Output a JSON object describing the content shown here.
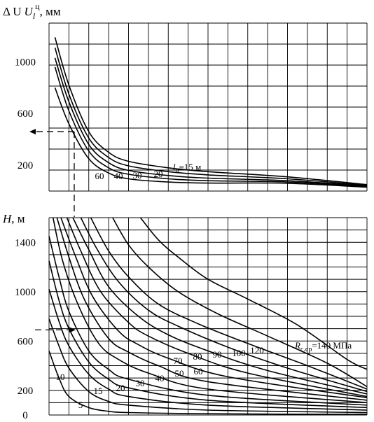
{
  "chart_data": [
    {
      "type": "line",
      "ylabel": "Δ U",
      "ylabel_sup": "ц",
      "ylabel_sub": "l",
      "ylabel_unit": ", мм",
      "yticks": [
        "1000",
        "600",
        "200"
      ],
      "ytick_values": [
        1000,
        600,
        200
      ],
      "ylim": [
        0,
        1300
      ],
      "xlim": [
        0,
        16
      ],
      "grid": true,
      "series_label_prefix": "l",
      "series_label_prefix_sub": "ц",
      "series_label_suffix": "=15 м",
      "series": [
        {
          "label": "15",
          "points": [
            [
              0.3,
              1190
            ],
            [
              1,
              820
            ],
            [
              2,
              460
            ],
            [
              3,
              300
            ],
            [
              4,
              230
            ],
            [
              6,
              180
            ],
            [
              8,
              150
            ],
            [
              12,
              110
            ],
            [
              16,
              50
            ]
          ]
        },
        {
          "label": "20",
          "points": [
            [
              0.3,
              1110
            ],
            [
              1,
              750
            ],
            [
              2,
              410
            ],
            [
              3,
              260
            ],
            [
              4,
              195
            ],
            [
              6,
              150
            ],
            [
              8,
              125
            ],
            [
              12,
              95
            ],
            [
              16,
              45
            ]
          ]
        },
        {
          "label": "30",
          "points": [
            [
              0.3,
              1030
            ],
            [
              1,
              690
            ],
            [
              2,
              360
            ],
            [
              3,
              220
            ],
            [
              4,
              160
            ],
            [
              6,
              120
            ],
            [
              8,
              100
            ],
            [
              12,
              80
            ],
            [
              16,
              40
            ]
          ]
        },
        {
          "label": "40",
          "points": [
            [
              0.3,
              960
            ],
            [
              1,
              620
            ],
            [
              2,
              310
            ],
            [
              3,
              180
            ],
            [
              4,
              130
            ],
            [
              6,
              95
            ],
            [
              8,
              80
            ],
            [
              12,
              70
            ],
            [
              16,
              35
            ]
          ]
        },
        {
          "label": "60",
          "points": [
            [
              0.3,
              800
            ],
            [
              1,
              520
            ],
            [
              2,
              250
            ],
            [
              3,
              140
            ],
            [
              4,
              95
            ],
            [
              6,
              70
            ],
            [
              8,
              62
            ],
            [
              12,
              60
            ],
            [
              16,
              30
            ]
          ]
        }
      ],
      "reading_line": {
        "y": 460
      }
    },
    {
      "type": "line",
      "ylabel": "H",
      "ylabel_unit": ", м",
      "yticks": [
        "1400",
        "1000",
        "600",
        "200",
        "0"
      ],
      "ytick_values": [
        1400,
        1000,
        600,
        200,
        0
      ],
      "ylim": [
        0,
        1600
      ],
      "xlim": [
        0,
        16
      ],
      "grid": true,
      "series_label_prefix": "R",
      "series_label_prefix_sub": "с.ср",
      "series_label_suffix": "=140 МПа",
      "series": [
        {
          "label": "5",
          "points": [
            [
              0,
              520
            ],
            [
              0.5,
              300
            ],
            [
              1,
              150
            ],
            [
              2,
              60
            ],
            [
              3,
              30
            ],
            [
              4,
              20
            ],
            [
              8,
              10
            ],
            [
              16,
              5
            ]
          ]
        },
        {
          "label": "10",
          "points": [
            [
              0,
              780
            ],
            [
              0.5,
              560
            ],
            [
              1,
              380
            ],
            [
              2,
              190
            ],
            [
              3,
              110
            ],
            [
              4,
              80
            ],
            [
              8,
              40
            ],
            [
              16,
              20
            ]
          ]
        },
        {
          "label": "15",
          "points": [
            [
              0,
              1020
            ],
            [
              0.5,
              760
            ],
            [
              1,
              560
            ],
            [
              2,
              330
            ],
            [
              3,
              210
            ],
            [
              4,
              150
            ],
            [
              8,
              80
            ],
            [
              16,
              40
            ]
          ]
        },
        {
          "label": "20",
          "points": [
            [
              0,
              1250
            ],
            [
              0.5,
              930
            ],
            [
              1,
              700
            ],
            [
              2,
              430
            ],
            [
              3,
              290
            ],
            [
              4,
              220
            ],
            [
              8,
              120
            ],
            [
              16,
              60
            ]
          ]
        },
        {
          "label": "30",
          "points": [
            [
              0,
              1450
            ],
            [
              0.5,
              1120
            ],
            [
              1,
              840
            ],
            [
              2,
              520
            ],
            [
              3,
              370
            ],
            [
              4,
              290
            ],
            [
              8,
              160
            ],
            [
              16,
              80
            ]
          ]
        },
        {
          "label": "40",
          "points": [
            [
              0.2,
              1600
            ],
            [
              0.7,
              1240
            ],
            [
              1.5,
              880
            ],
            [
              2.5,
              580
            ],
            [
              3.5,
              450
            ],
            [
              5,
              340
            ],
            [
              8,
              210
            ],
            [
              16,
              100
            ]
          ]
        },
        {
          "label": "50",
          "points": [
            [
              0.4,
              1600
            ],
            [
              1,
              1280
            ],
            [
              1.8,
              930
            ],
            [
              3,
              620
            ],
            [
              4,
              510
            ],
            [
              5.5,
              400
            ],
            [
              8,
              270
            ],
            [
              16,
              120
            ]
          ]
        },
        {
          "label": "60",
          "points": [
            [
              0.6,
              1600
            ],
            [
              1.3,
              1300
            ],
            [
              2.2,
              960
            ],
            [
              3.5,
              680
            ],
            [
              4.5,
              570
            ],
            [
              6,
              460
            ],
            [
              9,
              310
            ],
            [
              16,
              140
            ]
          ]
        },
        {
          "label": "70",
          "points": [
            [
              0.9,
              1600
            ],
            [
              1.6,
              1330
            ],
            [
              2.6,
              1000
            ],
            [
              4,
              750
            ],
            [
              5,
              640
            ],
            [
              7,
              500
            ],
            [
              10,
              340
            ],
            [
              16,
              150
            ]
          ]
        },
        {
          "label": "80",
          "points": [
            [
              1.2,
              1600
            ],
            [
              2,
              1340
            ],
            [
              3,
              1040
            ],
            [
              4.5,
              800
            ],
            [
              6,
              650
            ],
            [
              8,
              520
            ],
            [
              11,
              360
            ],
            [
              16,
              170
            ]
          ]
        },
        {
          "label": "90",
          "points": [
            [
              1.6,
              1600
            ],
            [
              2.4,
              1350
            ],
            [
              3.5,
              1080
            ],
            [
              5,
              850
            ],
            [
              6.5,
              720
            ],
            [
              9,
              550
            ],
            [
              12,
              380
            ],
            [
              16,
              190
            ]
          ]
        },
        {
          "label": "100",
          "points": [
            [
              2.1,
              1600
            ],
            [
              3,
              1330
            ],
            [
              4,
              1120
            ],
            [
              5.5,
              900
            ],
            [
              7.5,
              740
            ],
            [
              10,
              580
            ],
            [
              13,
              400
            ],
            [
              16,
              210
            ]
          ]
        },
        {
          "label": "120",
          "points": [
            [
              3.2,
              1600
            ],
            [
              4,
              1380
            ],
            [
              5,
              1200
            ],
            [
              6.5,
              1000
            ],
            [
              8.5,
              820
            ],
            [
              11,
              640
            ],
            [
              14,
              420
            ],
            [
              16,
              230
            ]
          ]
        },
        {
          "label": "140",
          "points": [
            [
              4.6,
              1600
            ],
            [
              5.5,
              1420
            ],
            [
              6.5,
              1280
            ],
            [
              8,
              1100
            ],
            [
              10,
              940
            ],
            [
              12.5,
              730
            ],
            [
              15,
              450
            ],
            [
              16,
              370
            ]
          ]
        }
      ],
      "reading_line": {
        "y": 690
      }
    }
  ]
}
